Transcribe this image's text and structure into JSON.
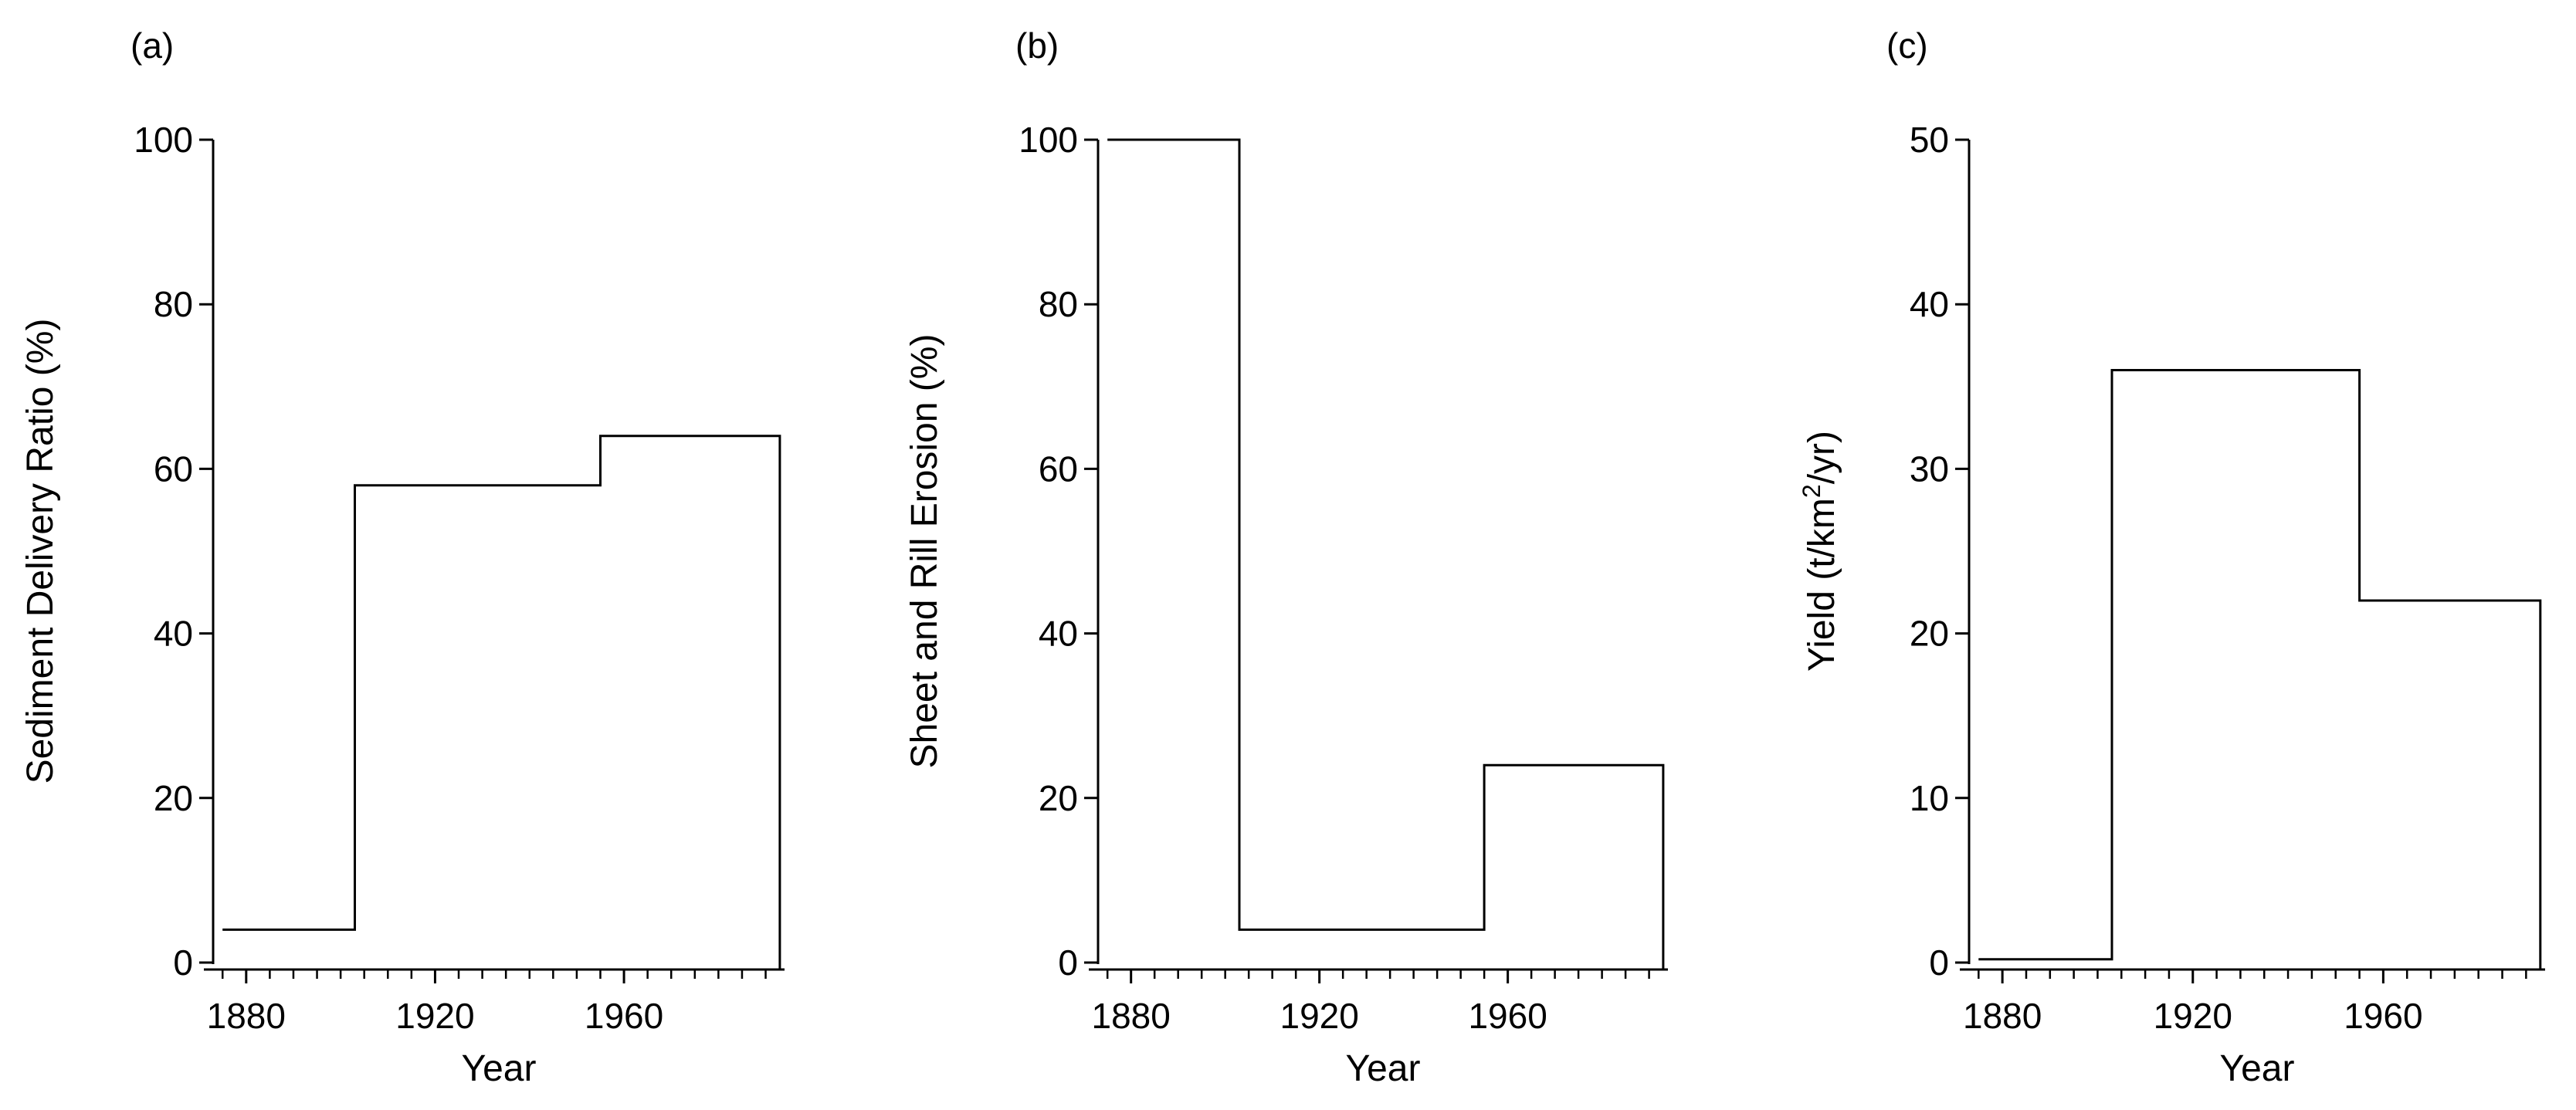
{
  "chart_data": [
    {
      "type": "line",
      "style": "step",
      "panel_label": "(a)",
      "xlabel": "Year",
      "ylabel": "Sediment Delivery Ratio (%)",
      "xlim": [
        1873,
        1994
      ],
      "ylim": [
        0,
        100
      ],
      "xticks": [
        1880,
        1920,
        1960
      ],
      "yticks": [
        0,
        20,
        40,
        60,
        80,
        100
      ],
      "series": [
        {
          "x": [
            1875,
            1903,
            1903,
            1955,
            1955,
            1993
          ],
          "y": [
            4,
            4,
            58,
            58,
            64,
            64
          ]
        }
      ]
    },
    {
      "type": "line",
      "style": "step",
      "panel_label": "(b)",
      "xlabel": "Year",
      "ylabel": "Sheet and Rill Erosion (%)",
      "xlim": [
        1873,
        1994
      ],
      "ylim": [
        0,
        100
      ],
      "xticks": [
        1880,
        1920,
        1960
      ],
      "yticks": [
        0,
        20,
        40,
        60,
        80,
        100
      ],
      "series": [
        {
          "x": [
            1875,
            1903,
            1903,
            1955,
            1955,
            1993
          ],
          "y": [
            100,
            100,
            4,
            4,
            24,
            24
          ]
        }
      ]
    },
    {
      "type": "line",
      "style": "step",
      "panel_label": "(c)",
      "xlabel": "Year",
      "ylabel": "Yield (t/km²/yr)",
      "ylabel_parts": [
        "Yield (t/km",
        "2",
        "/yr)"
      ],
      "xlim": [
        1873,
        1994
      ],
      "ylim": [
        0,
        50
      ],
      "xticks": [
        1880,
        1920,
        1960
      ],
      "yticks": [
        0,
        10,
        20,
        30,
        40,
        50
      ],
      "series": [
        {
          "x": [
            1875,
            1903,
            1903,
            1955,
            1955,
            1993
          ],
          "y": [
            0.2,
            0.2,
            36,
            36,
            22,
            22
          ]
        }
      ]
    }
  ]
}
